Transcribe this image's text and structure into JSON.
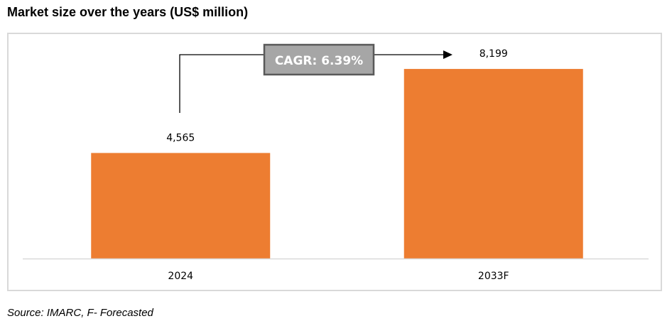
{
  "title": "Market size over the years (US$ million)",
  "source": "Source: IMARC, F- Forecasted",
  "colors": {
    "bar": "#ed7d31",
    "axis": "#d9d9d9",
    "cagr_fill": "#a6a6a6",
    "cagr_border": "#595959"
  },
  "annotation": {
    "cagr_label": "CAGR: 6.39%"
  },
  "chart_data": {
    "type": "bar",
    "categories": [
      "2024",
      "2033F"
    ],
    "values": [
      4565,
      8199
    ],
    "value_labels": [
      "4,565",
      "8,199"
    ],
    "title": "Market size over the years (US$ million)",
    "xlabel": "",
    "ylabel": "",
    "ylim": [
      0,
      9000
    ],
    "grid": false
  }
}
